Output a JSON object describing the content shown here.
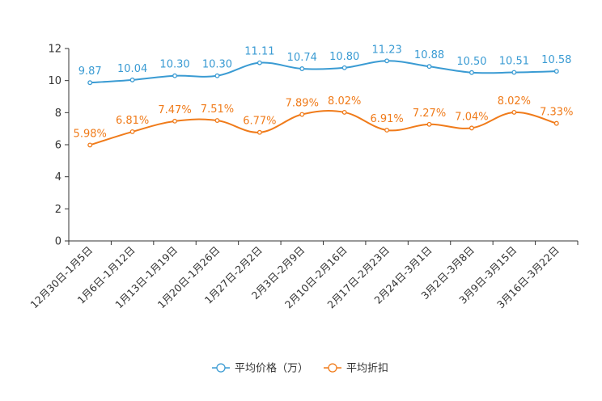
{
  "chart_data": {
    "type": "line",
    "categories": [
      "12月30日-1月5日",
      "1月6日-1月12日",
      "1月13日-1月19日",
      "1月20日-1月26日",
      "1月27日-2月2日",
      "2月3日-2月9日",
      "2月10日-2月16日",
      "2月17日-2月23日",
      "2月24日-3月1日",
      "3月2日-3月8日",
      "3月9日-3月15日",
      "3月16日-3月22日"
    ],
    "ylim": [
      0,
      12
    ],
    "yticks": [
      "0",
      "2",
      "4",
      "6",
      "8",
      "10",
      "12"
    ],
    "ytick_values": [
      0,
      2,
      4,
      6,
      8,
      10,
      12
    ],
    "series": [
      {
        "name": "平均价格（万）",
        "color": "#3a9bd3",
        "values": [
          9.87,
          10.04,
          10.3,
          10.3,
          11.11,
          10.74,
          10.8,
          11.23,
          10.88,
          10.5,
          10.51,
          10.58
        ],
        "labels": [
          "9.87",
          "10.04",
          "10.30",
          "10.30",
          "11.11",
          "10.74",
          "10.80",
          "11.23",
          "10.88",
          "10.50",
          "10.51",
          "10.58"
        ]
      },
      {
        "name": "平均折扣",
        "color": "#f07b1a",
        "values": [
          5.98,
          6.81,
          7.47,
          7.51,
          6.77,
          7.89,
          8.02,
          6.91,
          7.27,
          7.04,
          8.02,
          7.33
        ],
        "labels": [
          "5.98%",
          "6.81%",
          "7.47%",
          "7.51%",
          "6.77%",
          "7.89%",
          "8.02%",
          "6.91%",
          "7.27%",
          "7.04%",
          "8.02%",
          "7.33%"
        ]
      }
    ],
    "legend": "bottom"
  }
}
